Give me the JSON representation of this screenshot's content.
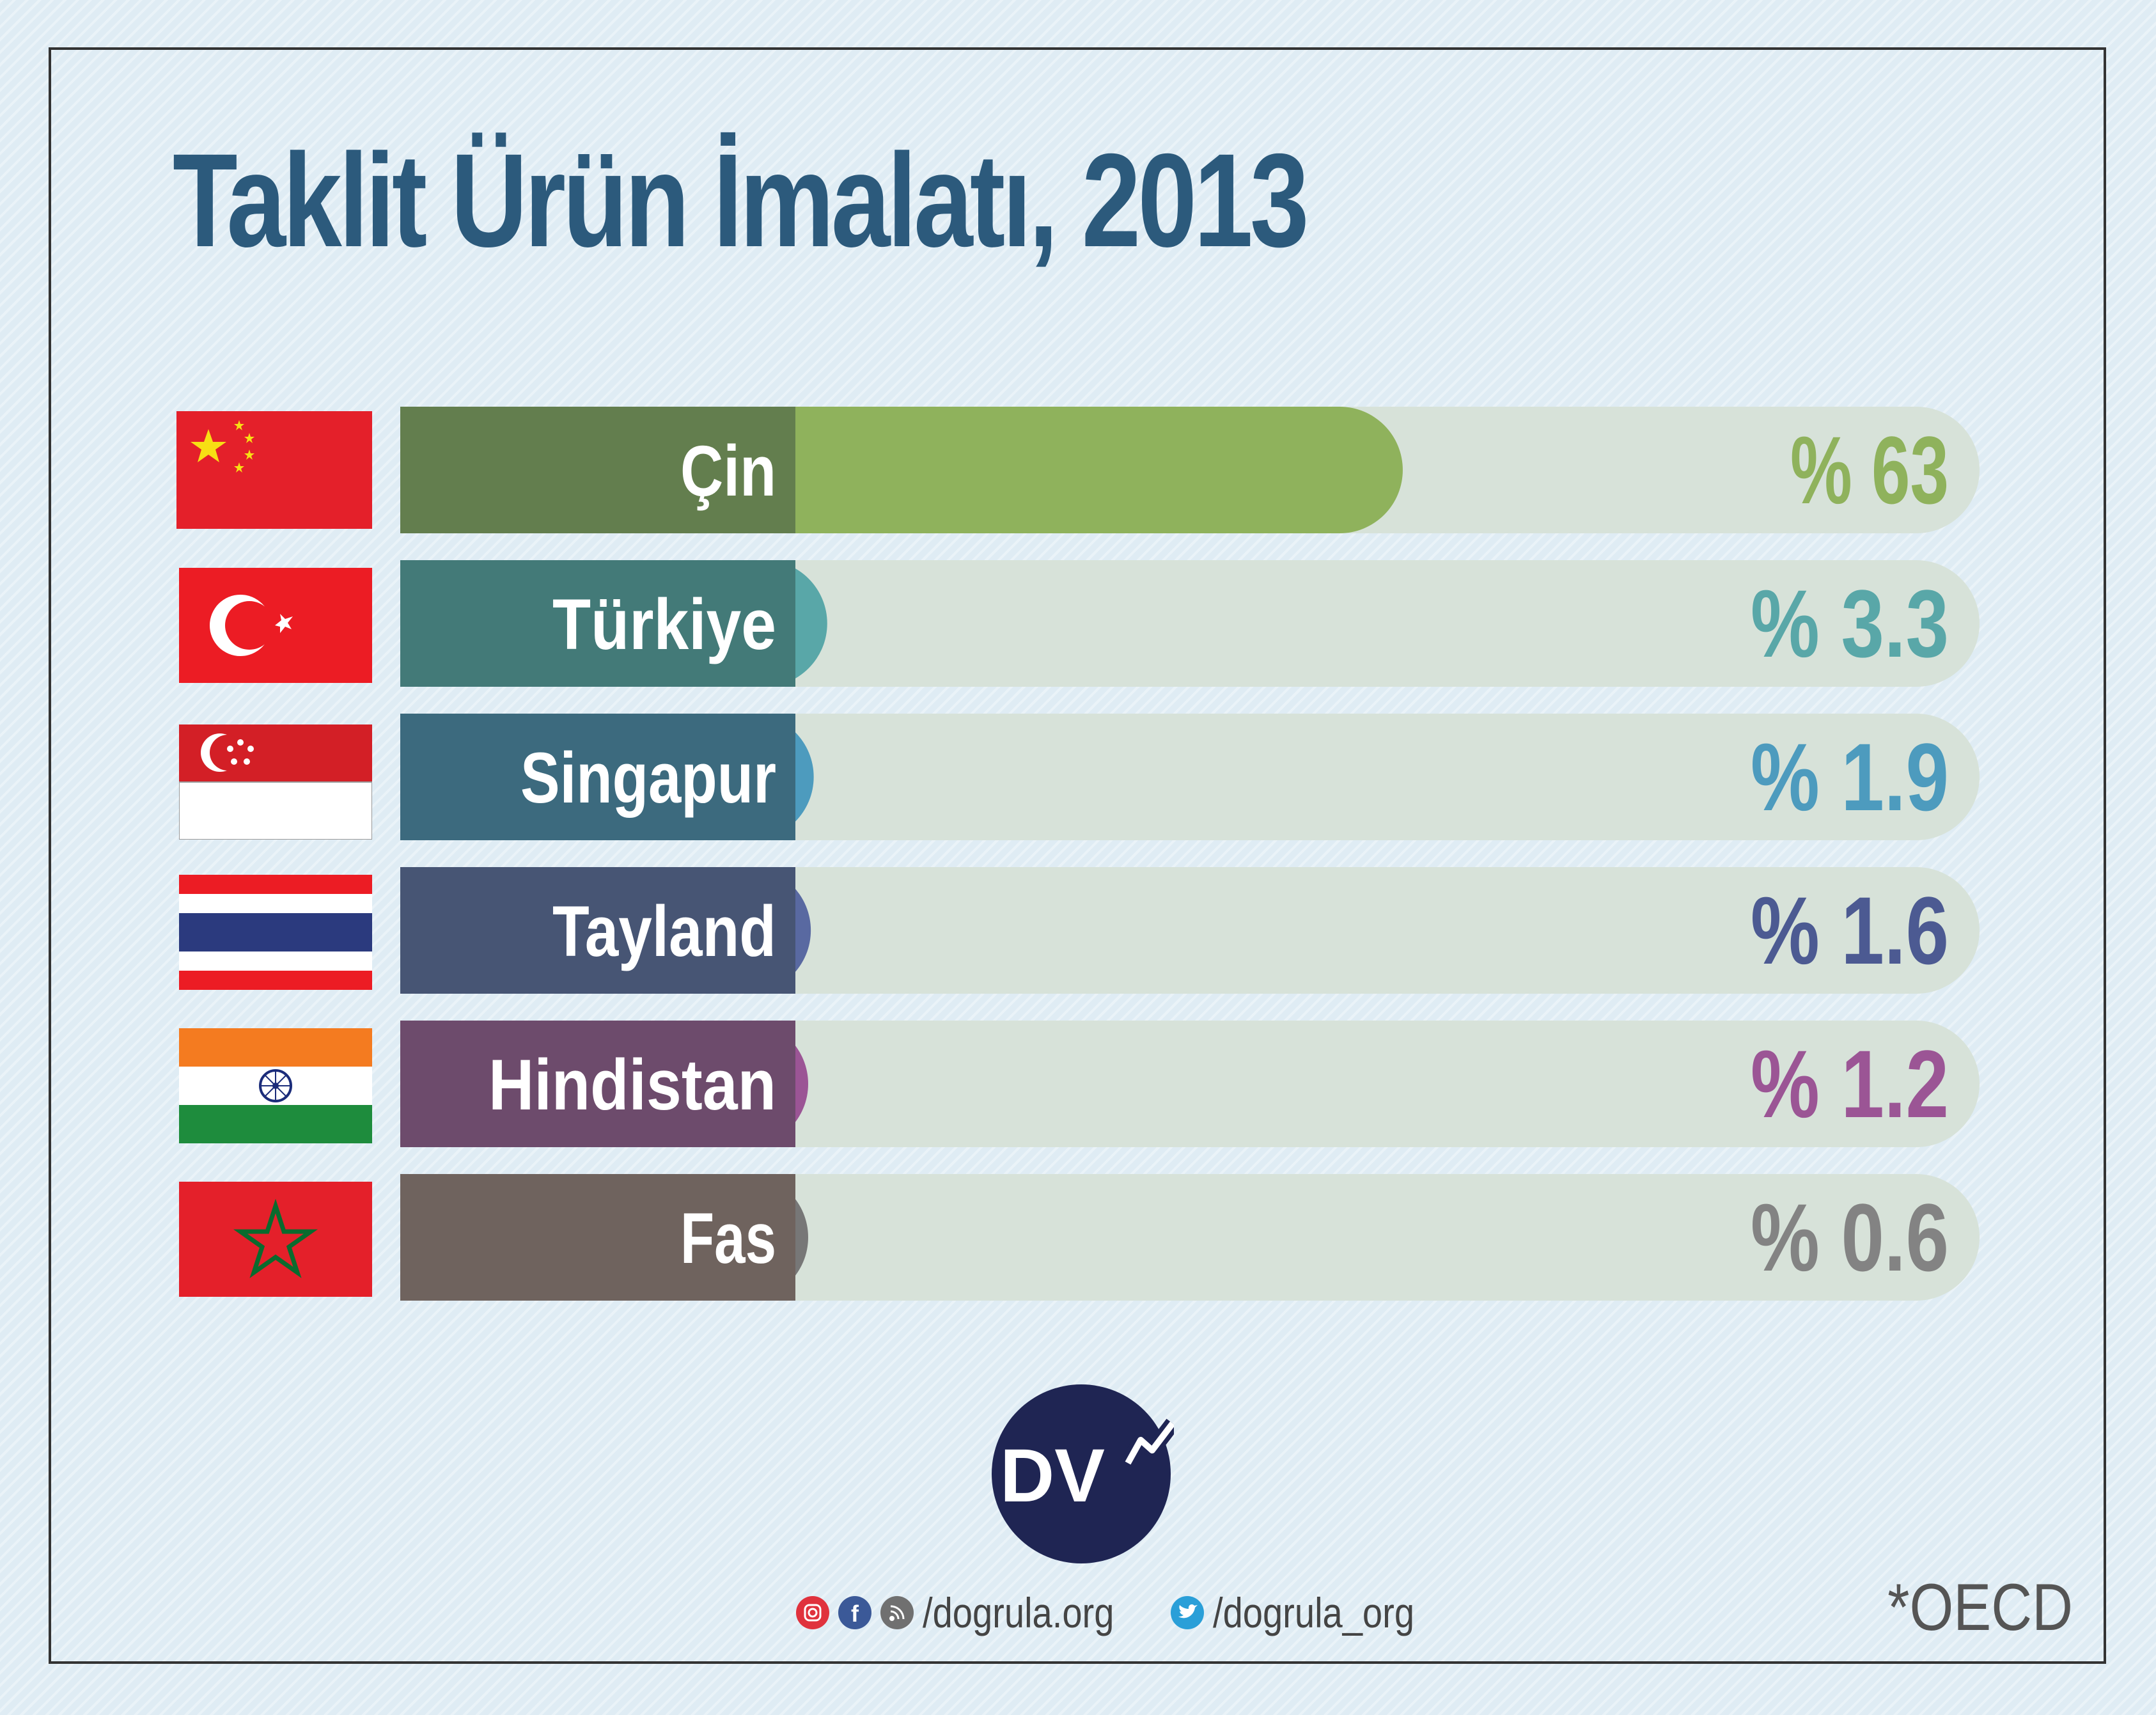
{
  "chart_data": {
    "type": "bar",
    "title": "Taklit Ürün İmalatı, 2013",
    "categories": [
      "Çin",
      "Türkiye",
      "Singapur",
      "Tayland",
      "Hindistan",
      "Fas"
    ],
    "values": [
      63,
      3.3,
      1.9,
      1.6,
      1.2,
      0.6
    ],
    "value_labels": [
      "% 63",
      "% 3.3",
      "% 1.9",
      "% 1.6",
      "% 1.2",
      "% 0.6"
    ],
    "colors": {
      "label_bg": [
        "#637e4e",
        "#437a78",
        "#3c6a7e",
        "#475574",
        "#6d4b6c",
        "#6f635e"
      ],
      "bar": [
        "#8fb25c",
        "#59a7a8",
        "#4d9bbe",
        "#5969a1",
        "#9b5595",
        "#777777"
      ],
      "value_text": [
        "#8fb25c",
        "#59a7a8",
        "#4d9bbe",
        "#4c5a92",
        "#9b5595",
        "#838383"
      ],
      "track": "#d7e2d9"
    },
    "grid": false,
    "legend": "none"
  },
  "flags": [
    "china-flag-icon",
    "turkey-flag-icon",
    "singapore-flag-icon",
    "thailand-flag-icon",
    "india-flag-icon",
    "morocco-flag-icon"
  ],
  "logo": {
    "text": "DV"
  },
  "footer": {
    "site": "/dogrula.org",
    "twitter": "/dogrula_org",
    "icons": [
      "instagram-icon",
      "facebook-icon",
      "rss-icon",
      "twitter-icon"
    ]
  },
  "source": "*OECD"
}
